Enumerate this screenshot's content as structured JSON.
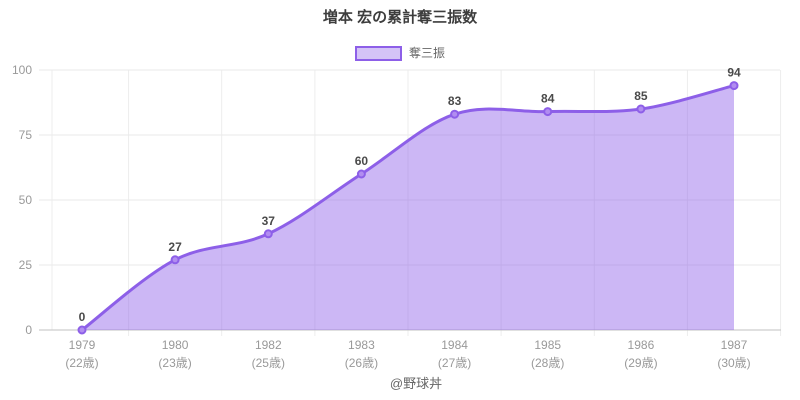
{
  "title": "増本 宏の累計奪三振数",
  "legend": {
    "label": "奪三振"
  },
  "footer": "@野球丼",
  "colors": {
    "line": "#8d5fe8",
    "area_fill": "rgba(141,95,232,0.45)",
    "marker_fill": "#b18df0",
    "legend_fill": "#d4c3f7",
    "grid_line": "#e9e9e9",
    "grid_line_vertical": "#ededed",
    "axis_line": "#c2c2c2",
    "tick_text": "#999999",
    "point_label_text": "#4a4a4a",
    "title_text": "#3d3d3d",
    "legend_text": "#666666",
    "footer_text": "#666666"
  },
  "chart_data": {
    "type": "area",
    "title": "増本 宏の累計奪三振数",
    "categories": [
      "1979",
      "1980",
      "1982",
      "1983",
      "1984",
      "1985",
      "1986",
      "1987"
    ],
    "category_sub_labels": [
      "(22歳)",
      "(23歳)",
      "(25歳)",
      "(26歳)",
      "(27歳)",
      "(28歳)",
      "(29歳)",
      "(30歳)"
    ],
    "series": [
      {
        "name": "奪三振",
        "values": [
          0,
          27,
          37,
          60,
          83,
          84,
          85,
          94
        ]
      }
    ],
    "ylim": [
      0,
      100
    ],
    "yticks": [
      0,
      25,
      50,
      75,
      100
    ],
    "xlabel": "",
    "ylabel": "",
    "grid": true,
    "smooth": true,
    "legend_position": "top",
    "point_labels": true
  }
}
